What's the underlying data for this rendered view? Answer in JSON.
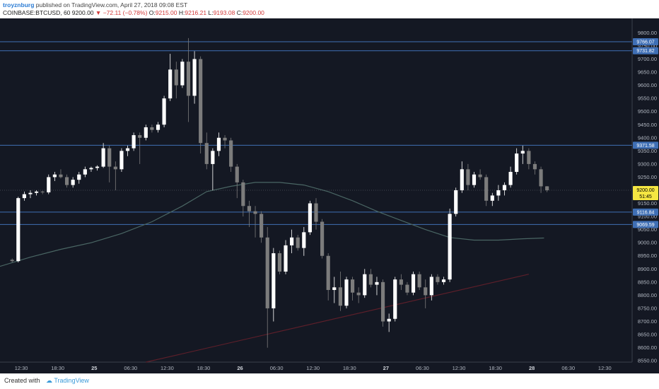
{
  "header": {
    "author": "troyznburg",
    "published": "published on TradingView.com, April 27, 2018 09:08 EST",
    "symbol": "COINBASE:BTCUSD, 60",
    "last": "9200.00",
    "change_arrow": "▼",
    "change": "−72.11 (−0.78%)",
    "o_label": "O:",
    "o_value": "9215.00",
    "h_label": "H:",
    "h_value": "9216.21",
    "l_label": "L:",
    "l_value": "9193.08",
    "c_label": "C:",
    "c_value": "9200.00"
  },
  "footer": {
    "created_with": "Created with",
    "logo_text": "TradingView"
  },
  "colors": {
    "background": "#141823",
    "level_line": "#3f6fb5",
    "ma_line": "#4a6664",
    "trend_line": "#5c1f2a",
    "up_candle": "#ffffff",
    "down_candle": "#7c7c7c",
    "price_label_bg": "#f5e642"
  },
  "chart_data": {
    "type": "candlestick",
    "symbol": "COINBASE:BTCUSD",
    "interval": "60",
    "ylim": [
      8545,
      9855
    ],
    "y_ticks": [
      8550,
      8600,
      8650,
      8700,
      8750,
      8800,
      8850,
      8900,
      8950,
      9000,
      9050,
      9100,
      9150,
      9200,
      9250,
      9300,
      9350,
      9400,
      9450,
      9500,
      9550,
      9600,
      9650,
      9700,
      9750,
      9800
    ],
    "x_ticks": [
      {
        "label": "12:30",
        "x": 1.5,
        "bold": false
      },
      {
        "label": "18:30",
        "x": 7.5,
        "bold": false
      },
      {
        "label": "25",
        "x": 13.5,
        "bold": true
      },
      {
        "label": "06:30",
        "x": 19.5,
        "bold": false
      },
      {
        "label": "12:30",
        "x": 25.5,
        "bold": false
      },
      {
        "label": "18:30",
        "x": 31.5,
        "bold": false
      },
      {
        "label": "26",
        "x": 37.5,
        "bold": true
      },
      {
        "label": "06:30",
        "x": 43.5,
        "bold": false
      },
      {
        "label": "12:30",
        "x": 49.5,
        "bold": false
      },
      {
        "label": "18:30",
        "x": 55.5,
        "bold": false
      },
      {
        "label": "27",
        "x": 61.5,
        "bold": true
      },
      {
        "label": "06:30",
        "x": 67.5,
        "bold": false
      },
      {
        "label": "12:30",
        "x": 73.5,
        "bold": false
      },
      {
        "label": "18:30",
        "x": 79.5,
        "bold": false
      },
      {
        "label": "28",
        "x": 85.5,
        "bold": true
      },
      {
        "label": "06:30",
        "x": 91.5,
        "bold": false
      },
      {
        "label": "12:30",
        "x": 97.5,
        "bold": false
      }
    ],
    "x_range": [
      -2,
      102
    ],
    "levels": [
      {
        "price": 9766.07,
        "label": "9766.07"
      },
      {
        "price": 9731.82,
        "label": "9731.82"
      },
      {
        "price": 9371.58,
        "label": "9371.58"
      },
      {
        "price": 9116.84,
        "label": "9116.84"
      },
      {
        "price": 9069.59,
        "label": "9069.59"
      }
    ],
    "current_price": {
      "price": 9200.0,
      "label": "9200.00",
      "countdown": "51:45"
    },
    "candles": [
      [
        8935,
        8940,
        8925,
        8930
      ],
      [
        8930,
        9175,
        8925,
        9170
      ],
      [
        9170,
        9195,
        9160,
        9185
      ],
      [
        9185,
        9200,
        9170,
        9190
      ],
      [
        9190,
        9200,
        9180,
        9195
      ],
      [
        9195,
        9198,
        9185,
        9192
      ],
      [
        9192,
        9260,
        9185,
        9250
      ],
      [
        9250,
        9270,
        9235,
        9260
      ],
      [
        9260,
        9280,
        9245,
        9250
      ],
      [
        9250,
        9260,
        9210,
        9220
      ],
      [
        9220,
        9250,
        9210,
        9240
      ],
      [
        9240,
        9270,
        9225,
        9260
      ],
      [
        9260,
        9290,
        9250,
        9280
      ],
      [
        9280,
        9290,
        9270,
        9285
      ],
      [
        9285,
        9295,
        9275,
        9290
      ],
      [
        9290,
        9380,
        9285,
        9360
      ],
      [
        9360,
        9370,
        9230,
        9290
      ],
      [
        9290,
        9310,
        9200,
        9280
      ],
      [
        9280,
        9360,
        9270,
        9350
      ],
      [
        9350,
        9370,
        9330,
        9360
      ],
      [
        9360,
        9420,
        9350,
        9410
      ],
      [
        9410,
        9420,
        9300,
        9400
      ],
      [
        9400,
        9450,
        9390,
        9440
      ],
      [
        9440,
        9450,
        9420,
        9430
      ],
      [
        9430,
        9460,
        9420,
        9450
      ],
      [
        9450,
        9560,
        9440,
        9550
      ],
      [
        9550,
        9720,
        9540,
        9660
      ],
      [
        9660,
        9690,
        9550,
        9600
      ],
      [
        9600,
        9700,
        9590,
        9690
      ],
      [
        9690,
        9780,
        9460,
        9560
      ],
      [
        9560,
        9730,
        9530,
        9700
      ],
      [
        9700,
        9710,
        9340,
        9380
      ],
      [
        9380,
        9420,
        9280,
        9300
      ],
      [
        9300,
        9360,
        9200,
        9350
      ],
      [
        9350,
        9420,
        9330,
        9400
      ],
      [
        9400,
        9410,
        9360,
        9390
      ],
      [
        9390,
        9400,
        9270,
        9290
      ],
      [
        9290,
        9300,
        9170,
        9230
      ],
      [
        9230,
        9240,
        9100,
        9140
      ],
      [
        9140,
        9160,
        9060,
        9120
      ],
      [
        9120,
        9140,
        9020,
        9110
      ],
      [
        9110,
        9120,
        9000,
        9020
      ],
      [
        9020,
        9060,
        8600,
        8750
      ],
      [
        8750,
        8980,
        8700,
        8960
      ],
      [
        8960,
        8970,
        8880,
        8890
      ],
      [
        8890,
        9010,
        8880,
        8990
      ],
      [
        8990,
        9050,
        8960,
        9020
      ],
      [
        9020,
        9030,
        8970,
        8980
      ],
      [
        8980,
        9060,
        8950,
        9040
      ],
      [
        9040,
        9160,
        9030,
        9150
      ],
      [
        9150,
        9170,
        9050,
        9080
      ],
      [
        9080,
        9090,
        8940,
        8950
      ],
      [
        8950,
        8960,
        8780,
        8820
      ],
      [
        8820,
        8870,
        8770,
        8830
      ],
      [
        8830,
        8890,
        8740,
        8760
      ],
      [
        8760,
        8870,
        8750,
        8860
      ],
      [
        8860,
        8870,
        8780,
        8810
      ],
      [
        8810,
        8830,
        8770,
        8800
      ],
      [
        8800,
        8900,
        8790,
        8880
      ],
      [
        8880,
        8900,
        8830,
        8840
      ],
      [
        8840,
        8870,
        8800,
        8850
      ],
      [
        8850,
        8860,
        8680,
        8700
      ],
      [
        8700,
        8730,
        8660,
        8710
      ],
      [
        8710,
        8870,
        8700,
        8860
      ],
      [
        8860,
        8880,
        8820,
        8840
      ],
      [
        8840,
        8850,
        8800,
        8810
      ],
      [
        8810,
        8890,
        8800,
        8880
      ],
      [
        8880,
        8890,
        8820,
        8830
      ],
      [
        8830,
        8860,
        8750,
        8800
      ],
      [
        8800,
        8880,
        8780,
        8870
      ],
      [
        8870,
        8880,
        8840,
        8850
      ],
      [
        8850,
        8870,
        8840,
        8860
      ],
      [
        8860,
        9130,
        8850,
        9110
      ],
      [
        9110,
        9210,
        9100,
        9200
      ],
      [
        9200,
        9310,
        9190,
        9280
      ],
      [
        9280,
        9300,
        9200,
        9220
      ],
      [
        9220,
        9270,
        9210,
        9260
      ],
      [
        9260,
        9280,
        9240,
        9250
      ],
      [
        9250,
        9260,
        9140,
        9160
      ],
      [
        9160,
        9190,
        9140,
        9180
      ],
      [
        9180,
        9220,
        9160,
        9200
      ],
      [
        9200,
        9230,
        9180,
        9220
      ],
      [
        9220,
        9290,
        9210,
        9270
      ],
      [
        9270,
        9360,
        9260,
        9340
      ],
      [
        9340,
        9370,
        9300,
        9350
      ],
      [
        9350,
        9360,
        9280,
        9300
      ],
      [
        9300,
        9310,
        9260,
        9280
      ],
      [
        9280,
        9290,
        9190,
        9215
      ],
      [
        9215,
        9216,
        9193,
        9200
      ]
    ],
    "moving_average": [
      [
        -2,
        8910
      ],
      [
        3,
        8945
      ],
      [
        8,
        8975
      ],
      [
        13,
        9000
      ],
      [
        18,
        9035
      ],
      [
        23,
        9080
      ],
      [
        28,
        9140
      ],
      [
        32,
        9195
      ],
      [
        36,
        9215
      ],
      [
        40,
        9230
      ],
      [
        44,
        9230
      ],
      [
        48,
        9220
      ],
      [
        52,
        9195
      ],
      [
        56,
        9160
      ],
      [
        60,
        9120
      ],
      [
        64,
        9085
      ],
      [
        68,
        9050
      ],
      [
        72,
        9020
      ],
      [
        76,
        9010
      ],
      [
        80,
        9010
      ],
      [
        84,
        9015
      ],
      [
        87.5,
        9018
      ]
    ],
    "trend_line": [
      [
        22,
        8545
      ],
      [
        85,
        8880
      ]
    ]
  }
}
